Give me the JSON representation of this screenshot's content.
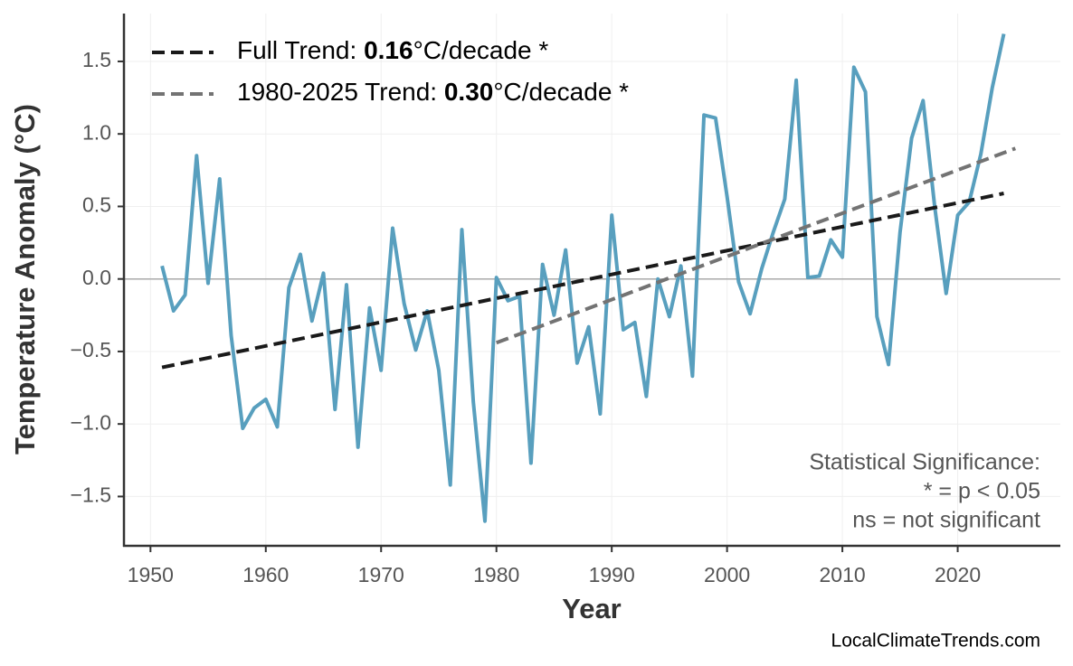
{
  "chart_data": {
    "type": "line",
    "xlabel": "Year",
    "ylabel": "Temperature Anomaly (°C)",
    "x": [
      1951,
      1952,
      1953,
      1954,
      1955,
      1956,
      1957,
      1958,
      1959,
      1960,
      1961,
      1962,
      1963,
      1964,
      1965,
      1966,
      1967,
      1968,
      1969,
      1970,
      1971,
      1972,
      1973,
      1974,
      1975,
      1976,
      1977,
      1978,
      1979,
      1980,
      1981,
      1982,
      1983,
      1984,
      1985,
      1986,
      1987,
      1988,
      1989,
      1990,
      1991,
      1992,
      1993,
      1994,
      1995,
      1996,
      1997,
      1998,
      1999,
      2000,
      2001,
      2002,
      2003,
      2004,
      2005,
      2006,
      2007,
      2008,
      2009,
      2010,
      2011,
      2012,
      2013,
      2014,
      2015,
      2016,
      2017,
      2018,
      2019,
      2020,
      2021,
      2022,
      2023,
      2024
    ],
    "series": [
      {
        "color": "#589fbe",
        "values": [
          0.09,
          -0.22,
          -0.11,
          0.85,
          -0.03,
          0.69,
          -0.39,
          -1.03,
          -0.89,
          -0.83,
          -1.02,
          -0.06,
          0.17,
          -0.29,
          0.04,
          -0.9,
          -0.04,
          -1.16,
          -0.2,
          -0.63,
          0.35,
          -0.17,
          -0.49,
          -0.22,
          -0.63,
          -1.42,
          0.34,
          -0.85,
          -1.67,
          0.01,
          -0.15,
          -0.12,
          -1.27,
          0.1,
          -0.25,
          0.2,
          -0.58,
          -0.33,
          -0.93,
          0.44,
          -0.35,
          -0.3,
          -0.81,
          0.0,
          -0.26,
          0.09,
          -0.67,
          1.13,
          1.11,
          0.57,
          -0.02,
          -0.24,
          0.07,
          0.32,
          0.55,
          1.37,
          0.01,
          0.02,
          0.27,
          0.15,
          1.46,
          1.29,
          -0.26,
          -0.59,
          0.32,
          0.97,
          1.23,
          0.5,
          -0.1,
          0.44,
          0.53,
          0.86,
          1.32,
          1.69
        ]
      },
      {
        "name": [
          "Full Trend: ",
          "0.16",
          "°C/decade *"
        ],
        "color": "#1a1a1a",
        "dashed": true,
        "x": [
          1951,
          2024
        ],
        "values": [
          -0.61,
          0.59
        ]
      },
      {
        "name": [
          "1980-2025 Trend: ",
          "0.30",
          "°C/decade *"
        ],
        "color": "#737373",
        "dashed": true,
        "x": [
          1980,
          2025
        ],
        "values": [
          -0.44,
          0.9
        ]
      }
    ],
    "xlim": [
      1947.7,
      2028.9
    ],
    "ylim": [
      -1.84,
      1.83
    ],
    "xticks": [
      1950,
      1960,
      1970,
      1980,
      1990,
      2000,
      2010,
      2020
    ],
    "yticks": [
      {
        "value": -1.5,
        "label": "−1.5"
      },
      {
        "value": -1.0,
        "label": "−1.0"
      },
      {
        "value": -0.5,
        "label": "−0.5"
      },
      {
        "value": 0,
        "label": "0.0"
      },
      0.5,
      {
        "value": 1.0,
        "label": "1.0"
      },
      1.5
    ],
    "grid": true,
    "reference_line": 0,
    "legend": "upper left",
    "annotations": [
      "Statistical Significance:",
      "* = p < 0.05",
      "ns = not significant"
    ],
    "watermark": "LocalClimateTrends.com"
  }
}
